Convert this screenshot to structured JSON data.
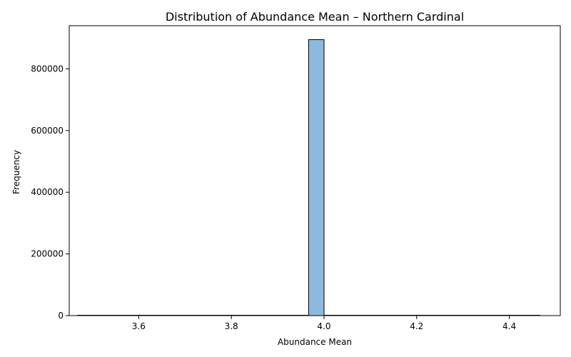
{
  "chart_data": {
    "type": "bar",
    "title": "Distribution of Abundance Mean – Northern Cardinal",
    "xlabel": "Abundance Mean",
    "ylabel": "Frequency",
    "xlim": [
      3.45,
      4.51
    ],
    "ylim": [
      0,
      940000
    ],
    "x_ticks": [
      {
        "value": 3.6,
        "label": "3.6"
      },
      {
        "value": 3.8,
        "label": "3.8"
      },
      {
        "value": 4.0,
        "label": "4.0"
      },
      {
        "value": 4.2,
        "label": "4.2"
      },
      {
        "value": 4.4,
        "label": "4.4"
      }
    ],
    "y_ticks": [
      {
        "value": 0,
        "label": "0"
      },
      {
        "value": 200000,
        "label": "200000"
      },
      {
        "value": 400000,
        "label": "400000"
      },
      {
        "value": 600000,
        "label": "600000"
      },
      {
        "value": 800000,
        "label": "800000"
      }
    ],
    "bins": [
      {
        "x0": 3.9667,
        "x1": 4.0,
        "count": 895000
      }
    ],
    "baseline": {
      "x0": 3.467,
      "x1": 4.467
    },
    "bar_color": "#8fb9dc",
    "edge_color": "#000000",
    "grid": false,
    "legend": "none"
  }
}
